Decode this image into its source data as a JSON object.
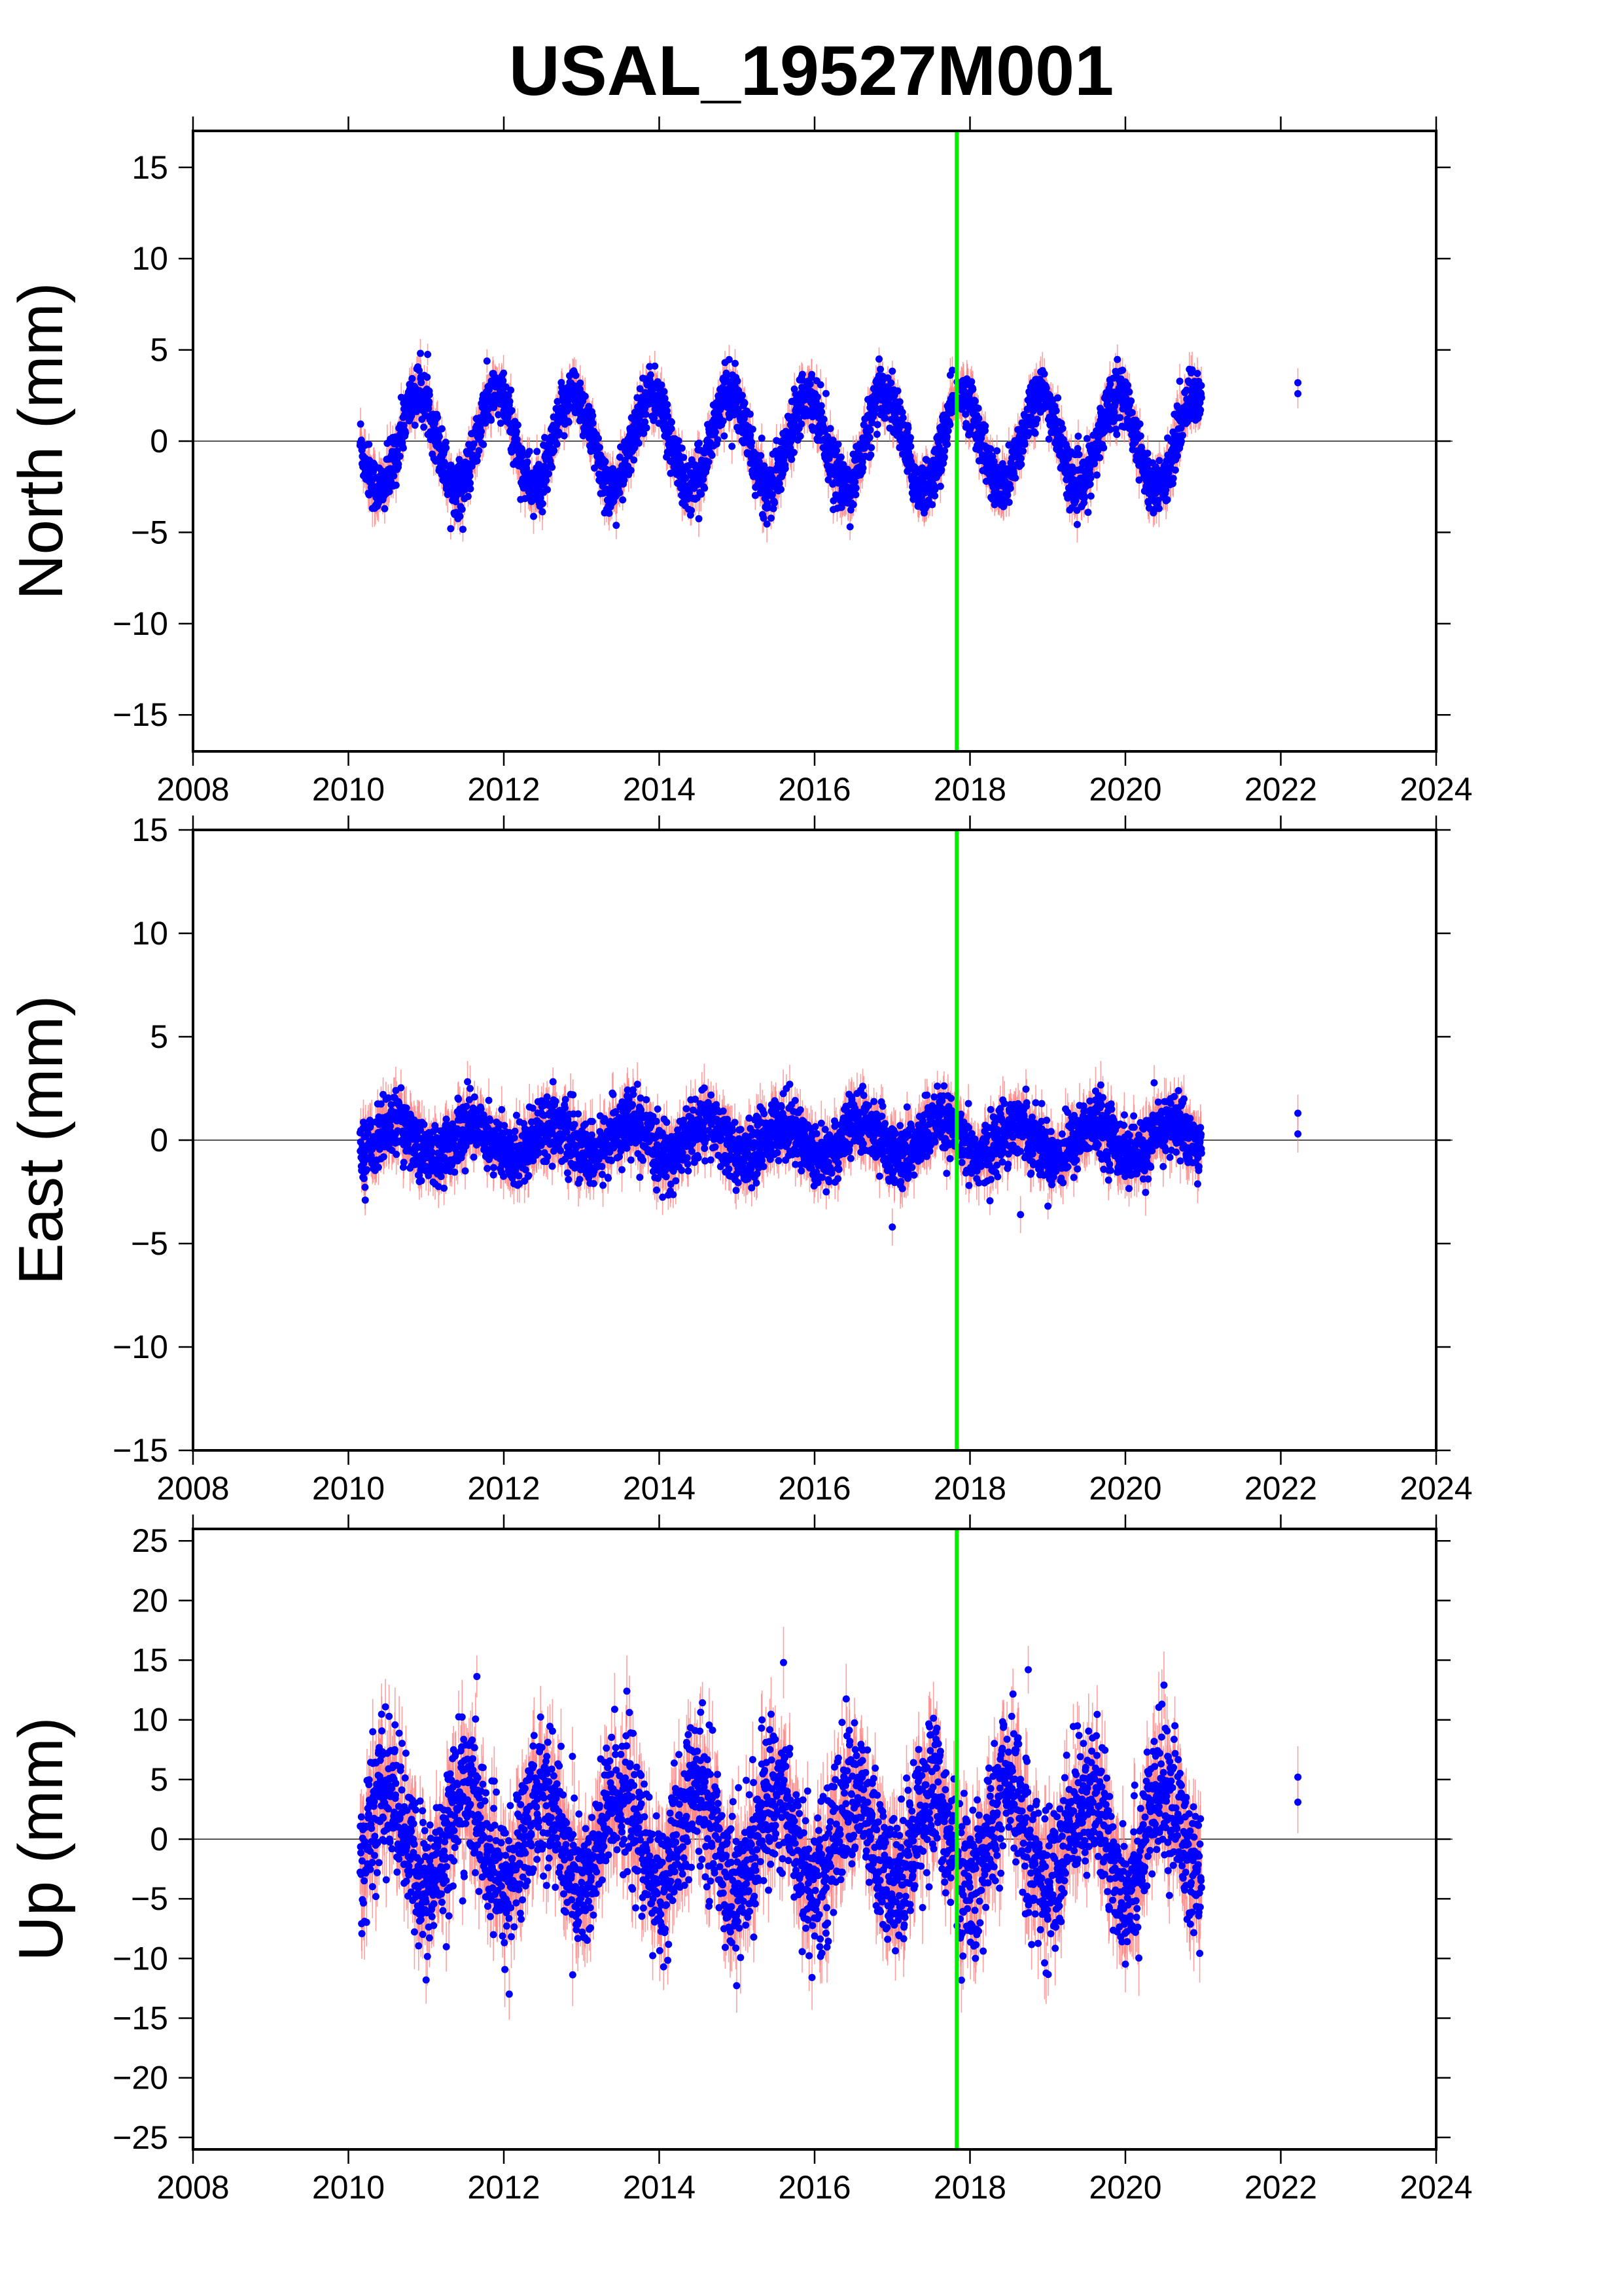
{
  "title": "USAL_19527M001",
  "colors": {
    "point": "#0000ff",
    "error_bar": "#ff8080",
    "marker_line": "#00ee00",
    "zero_line": "#555555"
  },
  "chart_data": [
    {
      "type": "scatter",
      "ylabel": "North (mm)",
      "xlim": [
        2008,
        2024
      ],
      "ylim": [
        -17,
        17
      ],
      "xticks": [
        2008,
        2010,
        2012,
        2014,
        2016,
        2018,
        2020,
        2022,
        2024
      ],
      "yticks": [
        -15,
        -10,
        -5,
        0,
        5,
        10,
        15
      ],
      "zero_line": 0,
      "vertical_line_x": 2017.83,
      "series_pattern": {
        "start": 2010.15,
        "end": 2020.98,
        "amplitude": 2.6,
        "period": 1.0,
        "phase": 2011.9,
        "noise": 0.75,
        "error": 0.8
      },
      "extra_points": [
        {
          "x": 2022.22,
          "y": 3.2,
          "err": 0.8
        },
        {
          "x": 2022.22,
          "y": 2.6,
          "err": 0.8
        }
      ]
    },
    {
      "type": "scatter",
      "ylabel": "East (mm)",
      "xlim": [
        2008,
        2024
      ],
      "ylim": [
        -15,
        15
      ],
      "xticks": [
        2008,
        2010,
        2012,
        2014,
        2016,
        2018,
        2020,
        2022,
        2024
      ],
      "yticks": [
        -15,
        -10,
        -5,
        0,
        5,
        10,
        15
      ],
      "zero_line": 0,
      "vertical_line_x": 2017.83,
      "series_pattern": {
        "start": 2010.15,
        "end": 2020.98,
        "amplitude": 0.8,
        "period": 1.0,
        "phase": 2012.6,
        "noise": 0.75,
        "error": 0.9
      },
      "extra_points": [
        {
          "x": 2022.22,
          "y": 1.3,
          "err": 0.9
        },
        {
          "x": 2022.22,
          "y": 0.3,
          "err": 0.9
        },
        {
          "x": 2017.0,
          "y": -4.2,
          "err": 0.9
        },
        {
          "x": 2018.65,
          "y": -3.6,
          "err": 0.9
        }
      ]
    },
    {
      "type": "scatter",
      "ylabel": "Up (mm)",
      "xlim": [
        2008,
        2024
      ],
      "ylim": [
        -26,
        26
      ],
      "xticks": [
        2008,
        2010,
        2012,
        2014,
        2016,
        2018,
        2020,
        2022,
        2024
      ],
      "yticks": [
        -25,
        -20,
        -15,
        -10,
        -5,
        0,
        5,
        10,
        15,
        20,
        25
      ],
      "zero_line": 0,
      "vertical_line_x": 2017.83,
      "series_pattern": {
        "start": 2010.15,
        "end": 2020.98,
        "amplitude": 4.0,
        "period": 1.0,
        "phase": 2011.5,
        "noise": 3.0,
        "error": 2.5
      },
      "extra_points": [
        {
          "x": 2022.22,
          "y": 5.2,
          "err": 2.6
        },
        {
          "x": 2022.22,
          "y": 3.1,
          "err": 2.6
        },
        {
          "x": 2015.6,
          "y": 14.8,
          "err": 3.0
        },
        {
          "x": 2018.75,
          "y": 14.2,
          "err": 2.0
        },
        {
          "x": 2011.0,
          "y": -11.8,
          "err": 2.0
        }
      ]
    }
  ]
}
